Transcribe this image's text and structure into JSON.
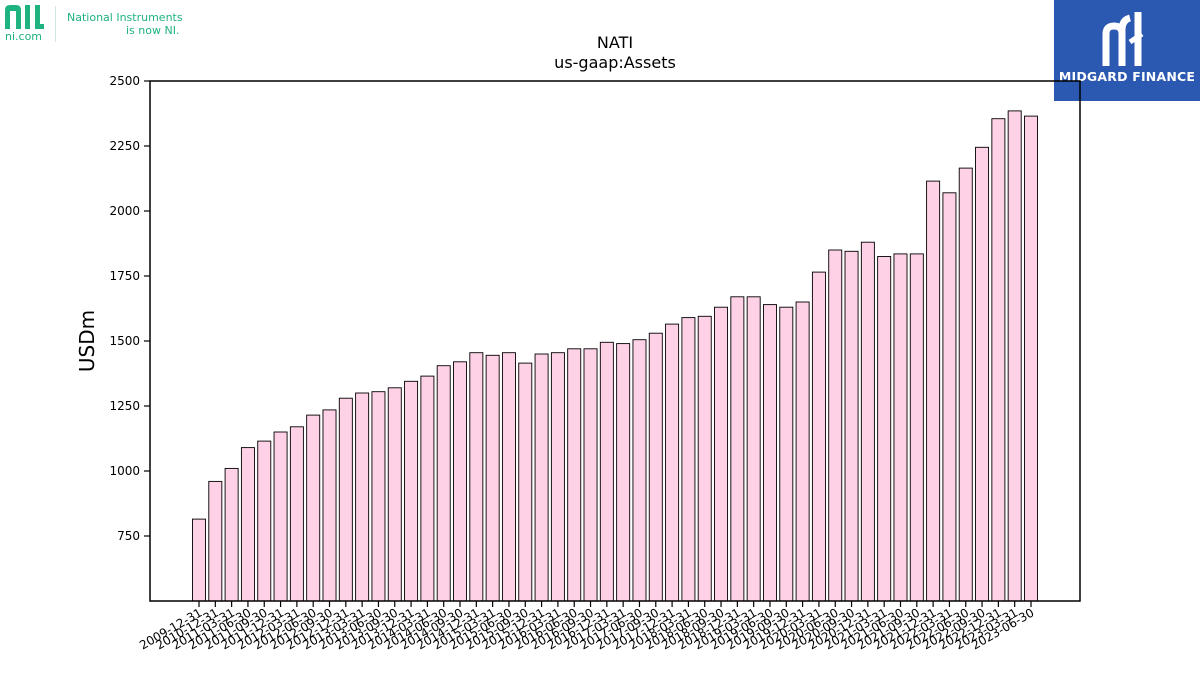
{
  "branding": {
    "ni_domain": "ni.com",
    "ni_tagline_line1": "National Instruments",
    "ni_tagline_line2": "is now NI.",
    "ni_color": "#1fb37f",
    "midgard_name": "MIDGARD FINANCE",
    "midgard_color": "#2b58b0"
  },
  "chart_data": {
    "type": "bar",
    "title": "NATI",
    "subtitle": "us-gaap:Assets",
    "ylabel": "USDm",
    "xlabel": "",
    "ylim": [
      500,
      2500
    ],
    "yticks": [
      750,
      1000,
      1250,
      1500,
      1750,
      2000,
      2250,
      2500
    ],
    "grid": false,
    "bar_color": "#ffd1e6",
    "bar_edge_color": "#000000",
    "categories": [
      "2009-12-31",
      "2010-12-31",
      "2011-03-31",
      "2011-06-30",
      "2011-09-30",
      "2011-12-31",
      "2012-03-31",
      "2012-06-30",
      "2012-09-30",
      "2012-12-31",
      "2013-03-31",
      "2013-06-30",
      "2013-09-30",
      "2013-12-31",
      "2014-03-31",
      "2014-06-30",
      "2014-09-30",
      "2014-12-31",
      "2015-03-31",
      "2015-06-30",
      "2015-09-30",
      "2015-12-31",
      "2016-03-31",
      "2016-06-30",
      "2016-09-30",
      "2016-12-31",
      "2017-03-31",
      "2017-06-30",
      "2017-09-30",
      "2017-12-31",
      "2018-03-31",
      "2018-06-30",
      "2018-09-30",
      "2018-12-31",
      "2019-03-31",
      "2019-06-30",
      "2019-09-30",
      "2019-12-31",
      "2020-03-31",
      "2020-06-30",
      "2020-09-30",
      "2020-12-31",
      "2021-03-31",
      "2021-06-30",
      "2021-09-30",
      "2021-12-31",
      "2022-03-31",
      "2022-06-30",
      "2022-09-30",
      "2022-12-31",
      "2023-03-31",
      "2023-06-30"
    ],
    "values": [
      815,
      960,
      1010,
      1090,
      1115,
      1150,
      1170,
      1215,
      1235,
      1280,
      1300,
      1305,
      1320,
      1345,
      1365,
      1405,
      1420,
      1455,
      1445,
      1455,
      1415,
      1450,
      1455,
      1470,
      1470,
      1495,
      1490,
      1505,
      1530,
      1565,
      1590,
      1595,
      1630,
      1670,
      1670,
      1640,
      1630,
      1650,
      1765,
      1850,
      1845,
      1880,
      1825,
      1835,
      1835,
      2115,
      2070,
      2165,
      2245,
      2355,
      2385,
      2365
    ]
  }
}
